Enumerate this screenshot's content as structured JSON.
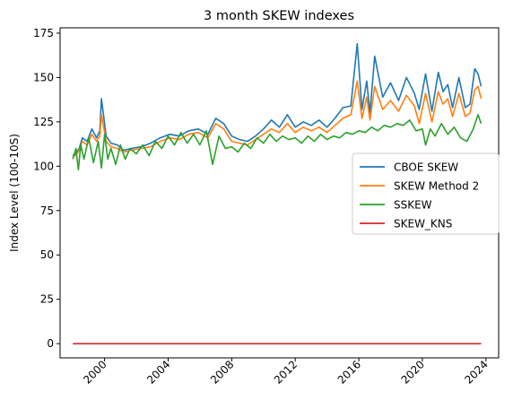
{
  "chart_data": {
    "type": "line",
    "title": "3 month SKEW indexes",
    "xlabel": "",
    "ylabel": "Index Level (100-10S)",
    "xlim": [
      1997.2,
      2024.8
    ],
    "ylim": [
      -8,
      178
    ],
    "xticks": [
      2000,
      2004,
      2008,
      2012,
      2016,
      2020,
      2024
    ],
    "yticks": [
      0,
      25,
      50,
      75,
      100,
      125,
      150,
      175
    ],
    "grid": false,
    "legend_position": "center-right",
    "series": [
      {
        "name": "CBOE SKEW",
        "color": "#1f77b4",
        "x": [
          1998.0,
          1998.25,
          1998.4,
          1998.6,
          1998.9,
          1999.2,
          1999.5,
          1999.7,
          1999.8,
          2000.1,
          2000.4,
          2000.8,
          2001.2,
          2001.7,
          2002.3,
          2002.9,
          2003.5,
          2004.1,
          2004.7,
          2005.3,
          2005.9,
          2006.5,
          2007.0,
          2007.5,
          2008.0,
          2008.5,
          2009.0,
          2009.5,
          2010.0,
          2010.5,
          2011.0,
          2011.5,
          2012.0,
          2012.5,
          2013.0,
          2013.5,
          2014.0,
          2014.5,
          2015.0,
          2015.5,
          2015.9,
          2016.2,
          2016.5,
          2016.7,
          2017.0,
          2017.5,
          2018.0,
          2018.5,
          2019.0,
          2019.5,
          2019.8,
          2020.2,
          2020.6,
          2021.0,
          2021.3,
          2021.6,
          2021.9,
          2022.3,
          2022.7,
          2023.0,
          2023.3,
          2023.5,
          2023.7
        ],
        "y": [
          106,
          108,
          110,
          116,
          114,
          121,
          116,
          120,
          138,
          117,
          113,
          112,
          109,
          110,
          111,
          113,
          116,
          118,
          117,
          120,
          121,
          118,
          127,
          124,
          117,
          115,
          114,
          117,
          121,
          126,
          122,
          129,
          122,
          125,
          123,
          126,
          122,
          127,
          133,
          134,
          169,
          132,
          148,
          130,
          162,
          139,
          147,
          137,
          150,
          141,
          132,
          152,
          131,
          153,
          142,
          146,
          133,
          150,
          133,
          135,
          155,
          152,
          145
        ]
      },
      {
        "name": "SKEW Method 2",
        "color": "#ff7f0e",
        "x": [
          1998.0,
          1998.25,
          1998.4,
          1998.6,
          1998.9,
          1999.2,
          1999.5,
          1999.7,
          1999.8,
          2000.1,
          2000.4,
          2000.8,
          2001.2,
          2001.7,
          2002.3,
          2002.9,
          2003.5,
          2004.1,
          2004.7,
          2005.3,
          2005.9,
          2006.5,
          2007.0,
          2007.5,
          2008.0,
          2008.5,
          2009.0,
          2009.5,
          2010.0,
          2010.5,
          2011.0,
          2011.5,
          2012.0,
          2012.5,
          2013.0,
          2013.5,
          2014.0,
          2014.5,
          2015.0,
          2015.5,
          2015.9,
          2016.2,
          2016.5,
          2016.7,
          2017.0,
          2017.5,
          2018.0,
          2018.5,
          2019.0,
          2019.5,
          2019.8,
          2020.2,
          2020.6,
          2021.0,
          2021.3,
          2021.6,
          2021.9,
          2022.3,
          2022.7,
          2023.0,
          2023.3,
          2023.5,
          2023.7
        ],
        "y": [
          105,
          107,
          109,
          114,
          112,
          118,
          114,
          117,
          129,
          114,
          111,
          110,
          108,
          109,
          110,
          111,
          114,
          116,
          115,
          118,
          119,
          116,
          124,
          121,
          114,
          113,
          112,
          115,
          118,
          121,
          119,
          124,
          119,
          122,
          120,
          122,
          119,
          123,
          127,
          129,
          148,
          127,
          139,
          126,
          145,
          132,
          137,
          131,
          140,
          134,
          124,
          141,
          125,
          142,
          135,
          138,
          128,
          141,
          128,
          130,
          143,
          145,
          138
        ]
      },
      {
        "name": "SSKEW",
        "color": "#2ca02c",
        "x": [
          1998.0,
          1998.2,
          1998.35,
          1998.5,
          1998.7,
          1999.0,
          1999.3,
          1999.6,
          1999.8,
          2000.0,
          2000.2,
          2000.4,
          2000.7,
          2001.0,
          2001.3,
          2001.6,
          2002.0,
          2002.4,
          2002.8,
          2003.2,
          2003.6,
          2004.0,
          2004.4,
          2004.8,
          2005.2,
          2005.6,
          2006.0,
          2006.4,
          2006.8,
          2007.2,
          2007.6,
          2008.0,
          2008.4,
          2008.8,
          2009.2,
          2009.6,
          2010.0,
          2010.4,
          2010.8,
          2011.2,
          2011.6,
          2012.0,
          2012.4,
          2012.8,
          2013.2,
          2013.6,
          2014.0,
          2014.4,
          2014.8,
          2015.2,
          2015.6,
          2016.0,
          2016.4,
          2016.8,
          2017.2,
          2017.6,
          2018.0,
          2018.4,
          2018.8,
          2019.2,
          2019.6,
          2020.0,
          2020.2,
          2020.5,
          2020.8,
          2021.2,
          2021.6,
          2022.0,
          2022.4,
          2022.8,
          2023.2,
          2023.5,
          2023.7
        ],
        "y": [
          104,
          110,
          98,
          112,
          104,
          116,
          102,
          114,
          99,
          118,
          104,
          110,
          101,
          112,
          104,
          110,
          107,
          112,
          106,
          114,
          110,
          117,
          112,
          119,
          113,
          118,
          112,
          120,
          101,
          117,
          110,
          111,
          108,
          113,
          110,
          116,
          113,
          118,
          114,
          117,
          115,
          116,
          113,
          117,
          114,
          118,
          115,
          117,
          116,
          119,
          118,
          120,
          119,
          122,
          120,
          123,
          122,
          124,
          123,
          126,
          120,
          121,
          112,
          121,
          117,
          124,
          118,
          122,
          116,
          114,
          121,
          129,
          124
        ]
      },
      {
        "name": "SKEW_KNS",
        "color": "#d62728",
        "x": [
          1998.0,
          2023.7
        ],
        "y": [
          0,
          0
        ]
      }
    ]
  }
}
